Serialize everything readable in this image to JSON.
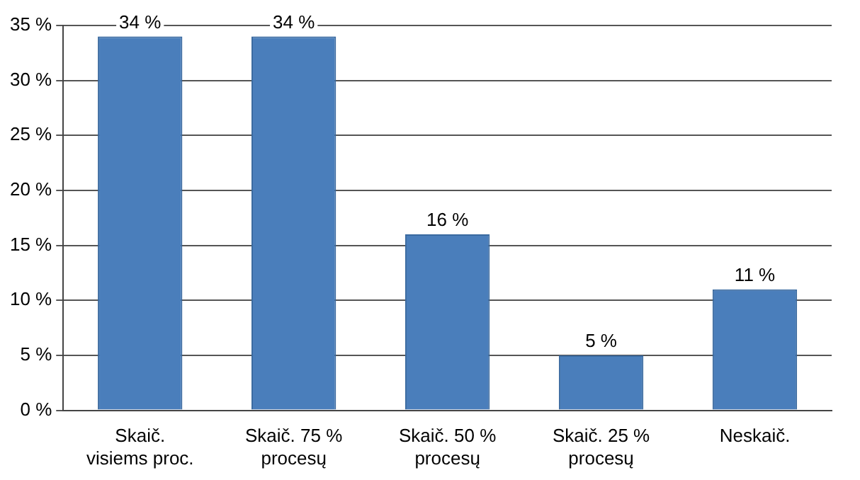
{
  "chart_data": {
    "type": "bar",
    "categories": [
      "Skaič. visiems proc.",
      "Skaič. 75 % procesų",
      "Skaič. 50 % procesų",
      "Skaič. 25 % procesų",
      "Neskaič."
    ],
    "values": [
      34,
      34,
      16,
      5,
      11
    ],
    "value_labels": [
      "34 %",
      "34 %",
      "16 %",
      "5 %",
      "11 %"
    ],
    "color": "#4a7ebb",
    "ylim": [
      0,
      35
    ],
    "yticks": [
      {
        "value": 0,
        "label": "0 %"
      },
      {
        "value": 5,
        "label": "5 %"
      },
      {
        "value": 10,
        "label": "10 %"
      },
      {
        "value": 15,
        "label": "15 %"
      },
      {
        "value": 20,
        "label": "20 %"
      },
      {
        "value": 25,
        "label": "25 %"
      },
      {
        "value": 30,
        "label": "30 %"
      },
      {
        "value": 35,
        "label": "35 %"
      }
    ],
    "grid": "y"
  }
}
